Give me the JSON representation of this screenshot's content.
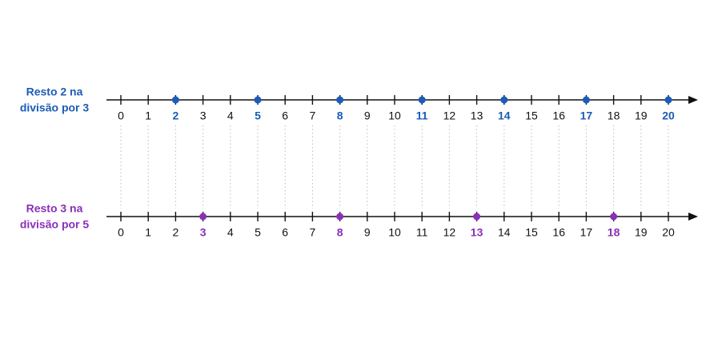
{
  "number_lines": [
    {
      "label_lines": [
        "Resto 2 na",
        "divisão por 3"
      ],
      "color": "#1c5bb8",
      "range": [
        0,
        20
      ],
      "ticks": [
        0,
        1,
        2,
        3,
        4,
        5,
        6,
        7,
        8,
        9,
        10,
        11,
        12,
        13,
        14,
        15,
        16,
        17,
        18,
        19,
        20
      ],
      "points": [
        2,
        5,
        8,
        11,
        14,
        17,
        20
      ]
    },
    {
      "label_lines": [
        "Resto 3 na",
        "divisão por 5"
      ],
      "color": "#8a2fb8",
      "range": [
        0,
        20
      ],
      "ticks": [
        0,
        1,
        2,
        3,
        4,
        5,
        6,
        7,
        8,
        9,
        10,
        11,
        12,
        13,
        14,
        15,
        16,
        17,
        18,
        19,
        20
      ],
      "points": [
        3,
        8,
        13,
        18
      ]
    }
  ]
}
